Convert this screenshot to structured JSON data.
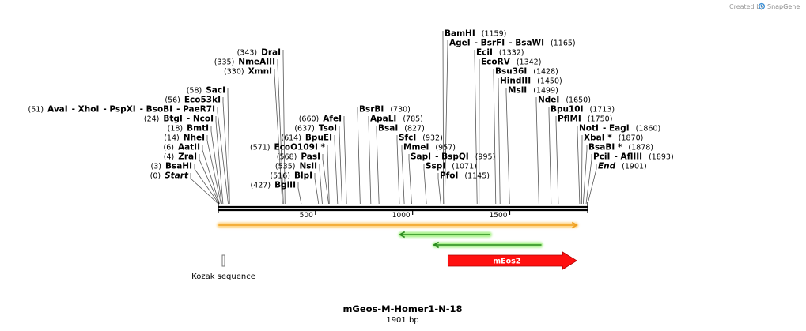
{
  "branding": {
    "created_by": "Created by",
    "app_name": "SnapGene"
  },
  "sequence": {
    "name": "mGeos-M-Homer1-N-18",
    "length_label": "1901 bp",
    "length": 1901
  },
  "ruler": {
    "ticks": [
      {
        "pos": 500,
        "label": "500"
      },
      {
        "pos": 1000,
        "label": "1000"
      },
      {
        "pos": 1500,
        "label": "1500"
      }
    ]
  },
  "features": [
    {
      "name": "orf-top",
      "type": "orf",
      "label": "",
      "start": 1,
      "end": 1845,
      "direction": "forward",
      "color": "#f0a020"
    },
    {
      "name": "orf-reverse-1",
      "type": "orf",
      "label": "",
      "start": 935,
      "end": 1400,
      "direction": "reverse",
      "color": "#2a8a1f"
    },
    {
      "name": "orf-reverse-2",
      "type": "orf",
      "label": "",
      "start": 1110,
      "end": 1663,
      "direction": "reverse",
      "color": "#2a8a1f"
    },
    {
      "name": "kozak-sequence",
      "type": "misc",
      "label": "Kozak sequence",
      "start": 22,
      "end": 31,
      "direction": "none",
      "color": "#777777"
    },
    {
      "name": "meos2",
      "type": "cds",
      "label": "mEos2",
      "start": 1182,
      "end": 1845,
      "direction": "forward",
      "color": "#ff1010"
    }
  ],
  "enzyme_groups": [
    {
      "row": 0,
      "cut": 1159,
      "label_x": 562,
      "tokens": [
        {
          "t": "BamHI",
          "k": "e"
        },
        {
          "t": "(1159)",
          "k": "n"
        }
      ]
    },
    {
      "row": 1,
      "cut": 1165,
      "label_x": 568,
      "tokens": [
        {
          "t": "AgeI",
          "k": "e"
        },
        {
          "t": "- BsrFI",
          "k": "e"
        },
        {
          "t": "- BsaWI",
          "k": "e"
        },
        {
          "t": "(1165)",
          "k": "n"
        }
      ]
    },
    {
      "row": 2,
      "cut": 1332,
      "label_x": 602,
      "tokens": [
        {
          "t": "EciI",
          "k": "e"
        },
        {
          "t": "(1332)",
          "k": "n"
        }
      ]
    },
    {
      "row": 3,
      "cut": 1342,
      "label_x": 608,
      "tokens": [
        {
          "t": "EcoRV",
          "k": "e"
        },
        {
          "t": "(1342)",
          "k": "n"
        }
      ]
    },
    {
      "row": 4,
      "cut": 1428,
      "label_x": 626,
      "tokens": [
        {
          "t": "Bsu36I",
          "k": "e"
        },
        {
          "t": "(1428)",
          "k": "n"
        }
      ]
    },
    {
      "row": 5,
      "cut": 1450,
      "label_x": 632,
      "tokens": [
        {
          "t": "HindIII",
          "k": "e"
        },
        {
          "t": "(1450)",
          "k": "n"
        }
      ]
    },
    {
      "row": 6,
      "cut": 1499,
      "label_x": 642,
      "tokens": [
        {
          "t": "MslI",
          "k": "e"
        },
        {
          "t": "(1499)",
          "k": "n"
        }
      ]
    },
    {
      "row": 7,
      "cut": 1650,
      "label_x": 680,
      "tokens": [
        {
          "t": "NdeI",
          "k": "e"
        },
        {
          "t": "(1650)",
          "k": "n"
        }
      ]
    },
    {
      "row": 8,
      "cut": 1713,
      "label_x": 696,
      "tokens": [
        {
          "t": "Bpu10I",
          "k": "e"
        },
        {
          "t": "(1713)",
          "k": "n"
        }
      ]
    },
    {
      "row": 9,
      "cut": 1750,
      "label_x": 705,
      "tokens": [
        {
          "t": "PflMI",
          "k": "e"
        },
        {
          "t": "(1750)",
          "k": "n"
        }
      ]
    },
    {
      "row": 10,
      "cut": 1860,
      "label_x": 732,
      "tokens": [
        {
          "t": "NotI",
          "k": "e"
        },
        {
          "t": "- EagI",
          "k": "e"
        },
        {
          "t": "(1860)",
          "k": "n"
        }
      ]
    },
    {
      "row": 11,
      "cut": 1870,
      "label_x": 738,
      "tokens": [
        {
          "t": "XbaI *",
          "k": "e"
        },
        {
          "t": "(1870)",
          "k": "n"
        }
      ]
    },
    {
      "row": 12,
      "cut": 1878,
      "label_x": 744,
      "tokens": [
        {
          "t": "BsaBI *",
          "k": "e"
        },
        {
          "t": "(1878)",
          "k": "n"
        }
      ]
    },
    {
      "row": 13,
      "cut": 1893,
      "label_x": 750,
      "tokens": [
        {
          "t": "PciI",
          "k": "e"
        },
        {
          "t": "- AflIII",
          "k": "e"
        },
        {
          "t": "(1893)",
          "k": "n"
        }
      ]
    },
    {
      "row": 14,
      "cut": 1901,
      "label_x": 756,
      "tokens": [
        {
          "t": "End",
          "k": "i"
        },
        {
          "t": "(1901)",
          "k": "n"
        }
      ]
    },
    {
      "row": 2,
      "cut": 343,
      "label_x": 355,
      "tokens": [
        {
          "t": "(343)",
          "k": "n"
        },
        {
          "t": "DraI",
          "k": "e"
        }
      ]
    },
    {
      "row": 3,
      "cut": 335,
      "label_x": 348,
      "tokens": [
        {
          "t": "(335)",
          "k": "n"
        },
        {
          "t": "NmeAIII",
          "k": "e"
        }
      ]
    },
    {
      "row": 4,
      "cut": 330,
      "label_x": 344,
      "tokens": [
        {
          "t": "(330)",
          "k": "n"
        },
        {
          "t": "XmnI",
          "k": "e"
        }
      ]
    },
    {
      "row": 6,
      "cut": 58,
      "label_x": 285,
      "tokens": [
        {
          "t": "(58)",
          "k": "n"
        },
        {
          "t": "SacI",
          "k": "e"
        }
      ]
    },
    {
      "row": 7,
      "cut": 56,
      "label_x": 279,
      "tokens": [
        {
          "t": "(56)",
          "k": "n"
        },
        {
          "t": "Eco53kI",
          "k": "e"
        }
      ]
    },
    {
      "row": 8,
      "cut": 51,
      "label_x": 272,
      "tokens": [
        {
          "t": "(51)",
          "k": "n"
        },
        {
          "t": "AvaI",
          "k": "e"
        },
        {
          "t": "- XhoI",
          "k": "e"
        },
        {
          "t": "- PspXI",
          "k": "e"
        },
        {
          "t": "- BsoBI",
          "k": "e"
        },
        {
          "t": "- PaeR7I",
          "k": "e"
        }
      ]
    },
    {
      "row": 9,
      "cut": 24,
      "label_x": 270,
      "tokens": [
        {
          "t": "(24)",
          "k": "n"
        },
        {
          "t": "BtgI",
          "k": "e"
        },
        {
          "t": "- NcoI",
          "k": "e"
        }
      ]
    },
    {
      "row": 10,
      "cut": 18,
      "label_x": 264,
      "tokens": [
        {
          "t": "(18)",
          "k": "n"
        },
        {
          "t": "BmtI",
          "k": "e"
        }
      ]
    },
    {
      "row": 11,
      "cut": 14,
      "label_x": 259,
      "tokens": [
        {
          "t": "(14)",
          "k": "n"
        },
        {
          "t": "NheI",
          "k": "e"
        }
      ]
    },
    {
      "row": 12,
      "cut": 6,
      "label_x": 253,
      "tokens": [
        {
          "t": "(6)",
          "k": "n"
        },
        {
          "t": "AatII",
          "k": "e"
        }
      ]
    },
    {
      "row": 13,
      "cut": 4,
      "label_x": 249,
      "tokens": [
        {
          "t": "(4)",
          "k": "n"
        },
        {
          "t": "ZraI",
          "k": "e"
        }
      ]
    },
    {
      "row": 14,
      "cut": 3,
      "label_x": 243,
      "tokens": [
        {
          "t": "(3)",
          "k": "n"
        },
        {
          "t": "BsaHI",
          "k": "e"
        }
      ]
    },
    {
      "row": 15,
      "cut": 0,
      "label_x": 238,
      "tokens": [
        {
          "t": "(0)",
          "k": "n"
        },
        {
          "t": "Start",
          "k": "i"
        }
      ]
    },
    {
      "row": 9,
      "cut": 660,
      "label_x": 432,
      "tokens": [
        {
          "t": "(660)",
          "k": "n"
        },
        {
          "t": "AfeI",
          "k": "e"
        }
      ]
    },
    {
      "row": 10,
      "cut": 637,
      "label_x": 426,
      "tokens": [
        {
          "t": "(637)",
          "k": "n"
        },
        {
          "t": "TsoI",
          "k": "e"
        }
      ]
    },
    {
      "row": 11,
      "cut": 614,
      "label_x": 420,
      "tokens": [
        {
          "t": "(614)",
          "k": "n"
        },
        {
          "t": "BpuEI",
          "k": "e"
        }
      ]
    },
    {
      "row": 12,
      "cut": 571,
      "label_x": 411,
      "tokens": [
        {
          "t": "(571)",
          "k": "n"
        },
        {
          "t": "EcoO109I *",
          "k": "e"
        }
      ]
    },
    {
      "row": 13,
      "cut": 568,
      "label_x": 405,
      "tokens": [
        {
          "t": "(568)",
          "k": "n"
        },
        {
          "t": "PasI",
          "k": "e"
        }
      ]
    },
    {
      "row": 14,
      "cut": 535,
      "label_x": 401,
      "tokens": [
        {
          "t": "(535)",
          "k": "n"
        },
        {
          "t": "NsiI",
          "k": "e"
        }
      ]
    },
    {
      "row": 15,
      "cut": 516,
      "label_x": 395,
      "tokens": [
        {
          "t": "(516)",
          "k": "n"
        },
        {
          "t": "BlpI",
          "k": "e"
        }
      ]
    },
    {
      "row": 16,
      "cut": 427,
      "label_x": 374,
      "tokens": [
        {
          "t": "(427)",
          "k": "n"
        },
        {
          "t": "BglII",
          "k": "e"
        }
      ]
    },
    {
      "row": 8,
      "cut": 730,
      "label_x": 454,
      "tokens": [
        {
          "t": "BsrBI",
          "k": "e"
        },
        {
          "t": "(730)",
          "k": "n"
        }
      ]
    },
    {
      "row": 9,
      "cut": 785,
      "label_x": 468,
      "tokens": [
        {
          "t": "ApaLI",
          "k": "e"
        },
        {
          "t": "(785)",
          "k": "n"
        }
      ]
    },
    {
      "row": 10,
      "cut": 827,
      "label_x": 478,
      "tokens": [
        {
          "t": "BsaI",
          "k": "e"
        },
        {
          "t": "(827)",
          "k": "n"
        }
      ]
    },
    {
      "row": 11,
      "cut": 932,
      "label_x": 504,
      "tokens": [
        {
          "t": "SfcI",
          "k": "e"
        },
        {
          "t": "(932)",
          "k": "n"
        }
      ]
    },
    {
      "row": 12,
      "cut": 957,
      "label_x": 510,
      "tokens": [
        {
          "t": "MmeI",
          "k": "e"
        },
        {
          "t": "(957)",
          "k": "n"
        }
      ]
    },
    {
      "row": 13,
      "cut": 995,
      "label_x": 519,
      "tokens": [
        {
          "t": "SapI",
          "k": "e"
        },
        {
          "t": "- BspQI",
          "k": "e"
        },
        {
          "t": "(995)",
          "k": "n"
        }
      ]
    },
    {
      "row": 14,
      "cut": 1071,
      "label_x": 538,
      "tokens": [
        {
          "t": "SspI",
          "k": "e"
        },
        {
          "t": "(1071)",
          "k": "n"
        }
      ]
    },
    {
      "row": 15,
      "cut": 1145,
      "label_x": 556,
      "tokens": [
        {
          "t": "PfoI",
          "k": "e"
        },
        {
          "t": "(1145)",
          "k": "n"
        }
      ]
    }
  ]
}
